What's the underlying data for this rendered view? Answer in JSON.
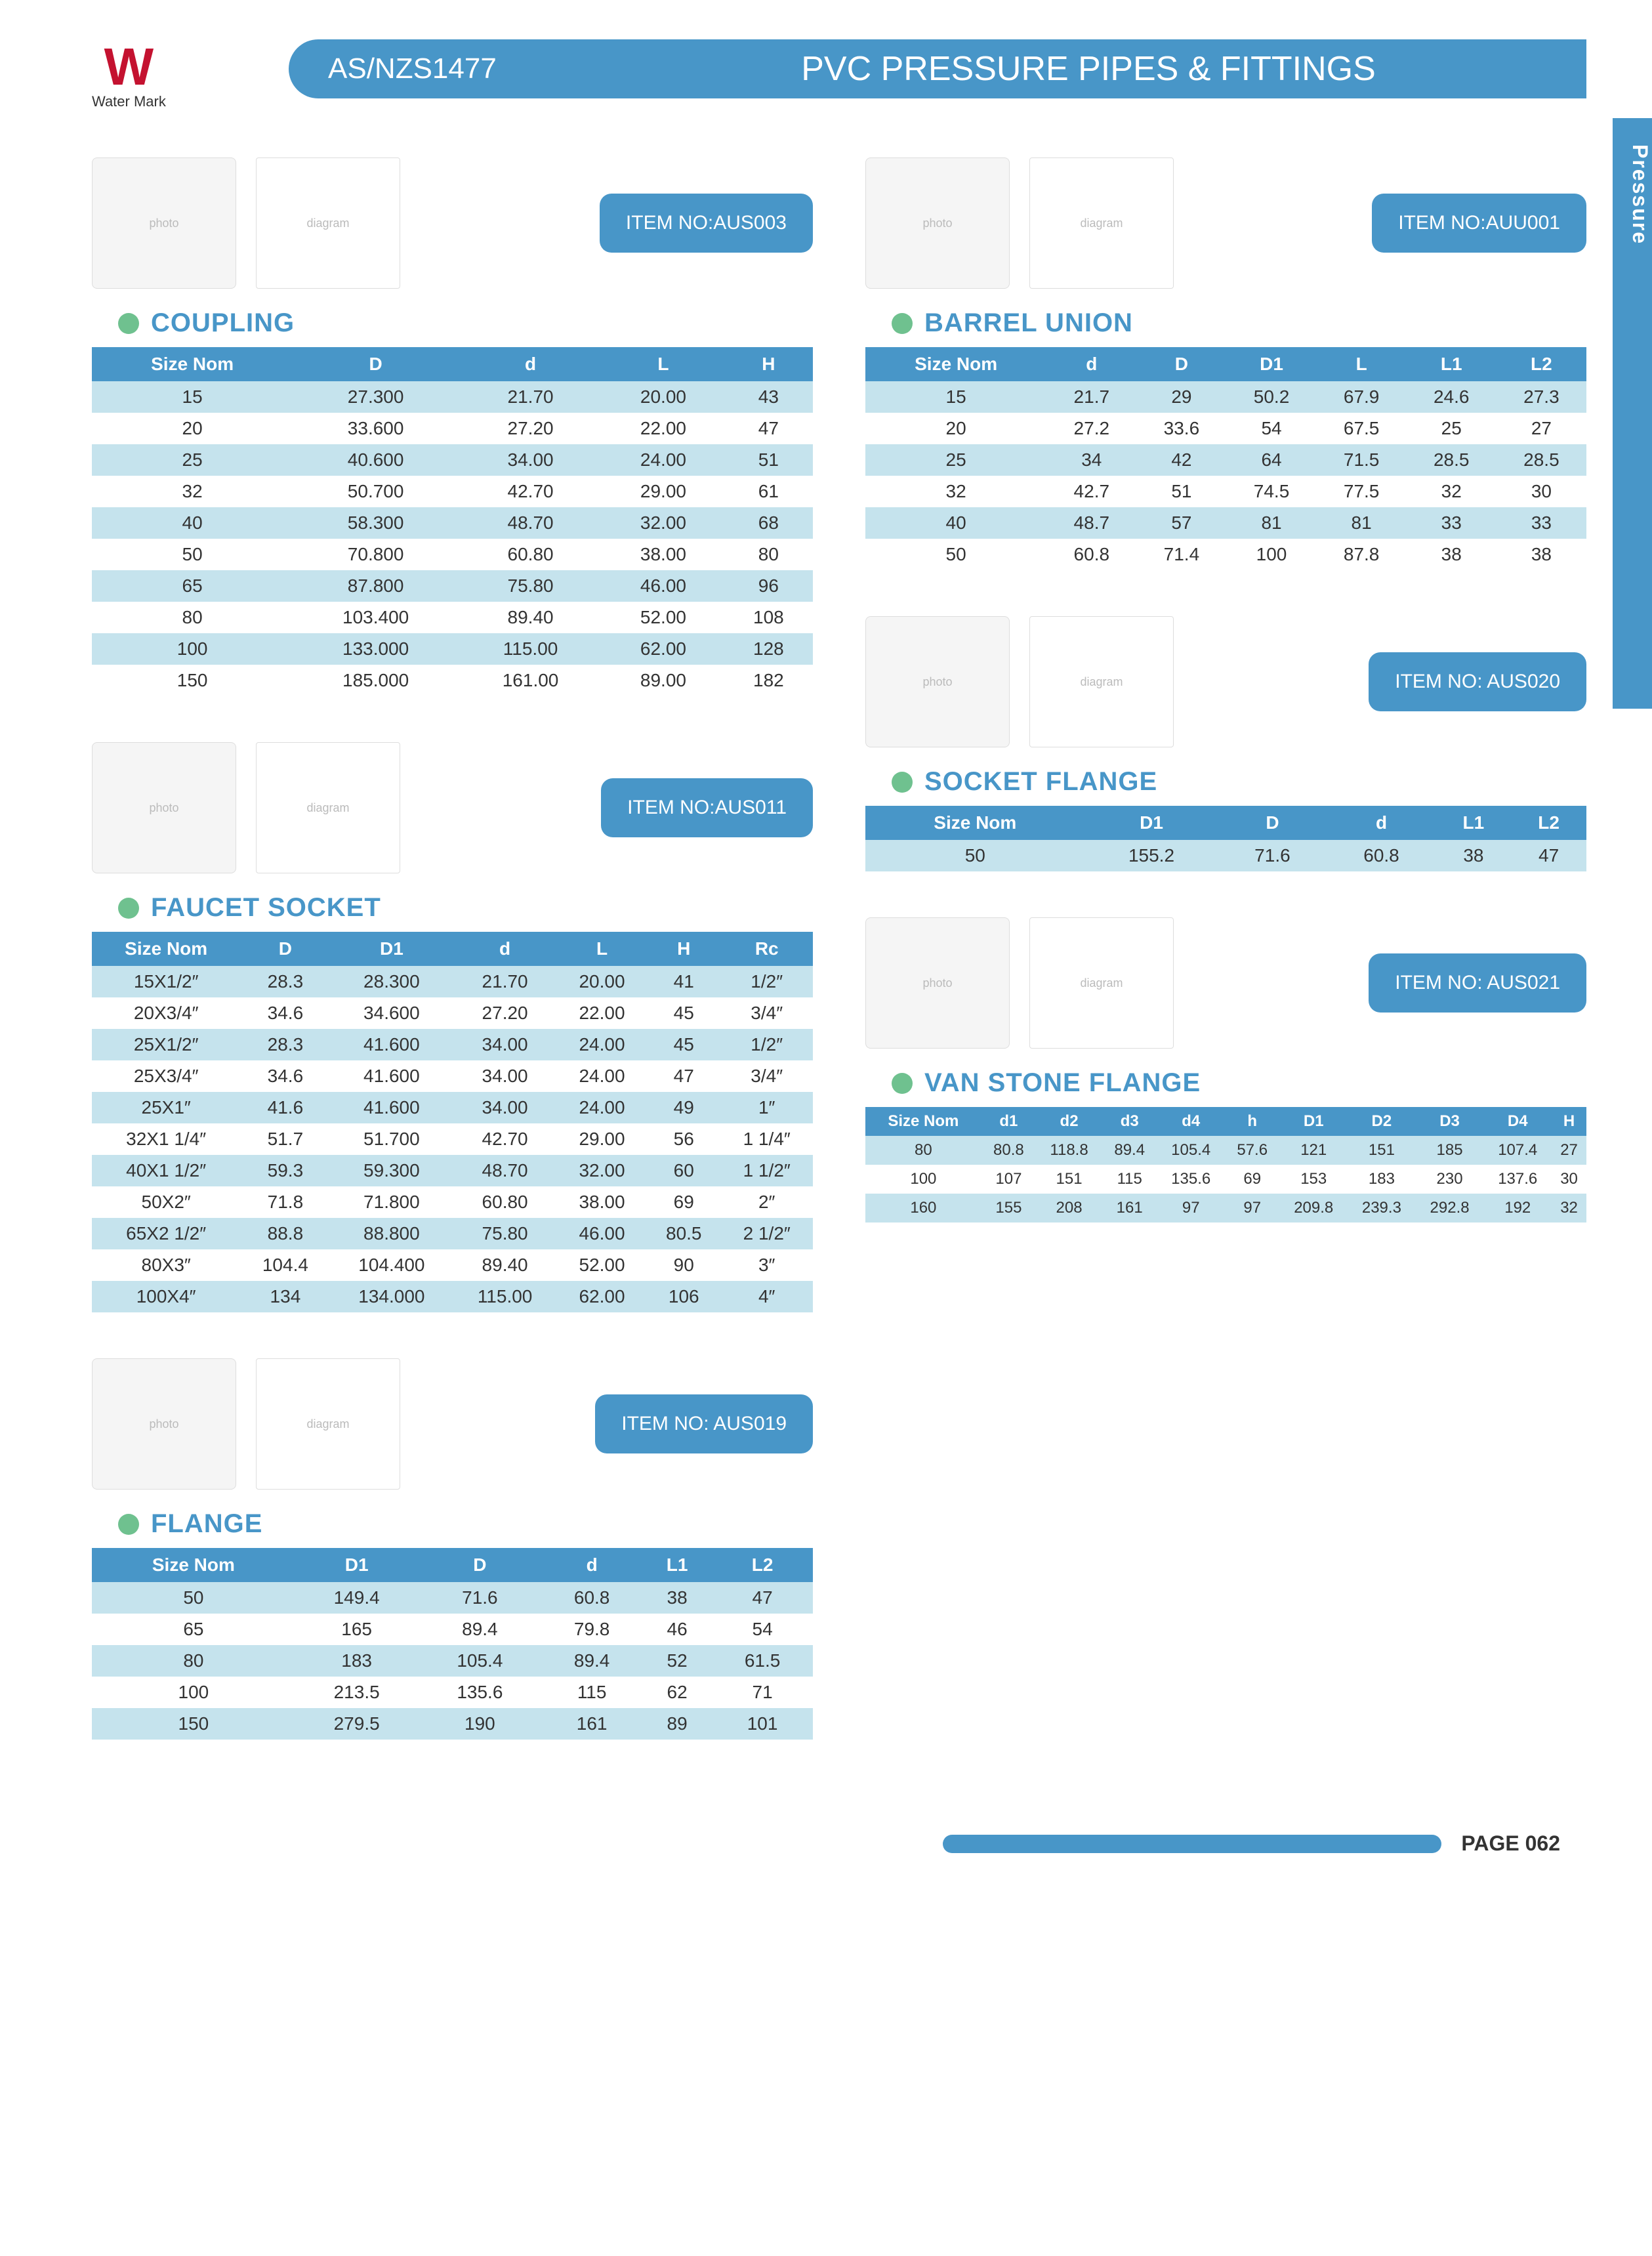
{
  "watermark": {
    "icon": "W",
    "label": "Water Mark"
  },
  "header": {
    "standard": "AS/NZS1477",
    "title": "PVC PRESSURE PIPES & FITTINGS"
  },
  "side_tab": "Pressure",
  "footer": {
    "page": "PAGE 062"
  },
  "colors": {
    "primary": "#4896c8",
    "dot": "#6fc18f",
    "row_alt": "#c5e3ed",
    "wm_red": "#c41230"
  },
  "coupling": {
    "item_no": "ITEM NO:AUS003",
    "title": "COUPLING",
    "columns": [
      "Size Nom",
      "D",
      "d",
      "L",
      "H"
    ],
    "rows": [
      [
        "15",
        "27.300",
        "21.70",
        "20.00",
        "43"
      ],
      [
        "20",
        "33.600",
        "27.20",
        "22.00",
        "47"
      ],
      [
        "25",
        "40.600",
        "34.00",
        "24.00",
        "51"
      ],
      [
        "32",
        "50.700",
        "42.70",
        "29.00",
        "61"
      ],
      [
        "40",
        "58.300",
        "48.70",
        "32.00",
        "68"
      ],
      [
        "50",
        "70.800",
        "60.80",
        "38.00",
        "80"
      ],
      [
        "65",
        "87.800",
        "75.80",
        "46.00",
        "96"
      ],
      [
        "80",
        "103.400",
        "89.40",
        "52.00",
        "108"
      ],
      [
        "100",
        "133.000",
        "115.00",
        "62.00",
        "128"
      ],
      [
        "150",
        "185.000",
        "161.00",
        "89.00",
        "182"
      ]
    ]
  },
  "barrel_union": {
    "item_no": "ITEM NO:AUU001",
    "title": "BARREL UNION",
    "columns": [
      "Size Nom",
      "d",
      "D",
      "D1",
      "L",
      "L1",
      "L2"
    ],
    "rows": [
      [
        "15",
        "21.7",
        "29",
        "50.2",
        "67.9",
        "24.6",
        "27.3"
      ],
      [
        "20",
        "27.2",
        "33.6",
        "54",
        "67.5",
        "25",
        "27"
      ],
      [
        "25",
        "34",
        "42",
        "64",
        "71.5",
        "28.5",
        "28.5"
      ],
      [
        "32",
        "42.7",
        "51",
        "74.5",
        "77.5",
        "32",
        "30"
      ],
      [
        "40",
        "48.7",
        "57",
        "81",
        "81",
        "33",
        "33"
      ],
      [
        "50",
        "60.8",
        "71.4",
        "100",
        "87.8",
        "38",
        "38"
      ]
    ]
  },
  "faucet_socket": {
    "item_no": "ITEM NO:AUS011",
    "title": "FAUCET SOCKET",
    "columns": [
      "Size Nom",
      "D",
      "D1",
      "d",
      "L",
      "H",
      "Rc"
    ],
    "rows": [
      [
        "15X1/2″",
        "28.3",
        "28.300",
        "21.70",
        "20.00",
        "41",
        "1/2″"
      ],
      [
        "20X3/4″",
        "34.6",
        "34.600",
        "27.20",
        "22.00",
        "45",
        "3/4″"
      ],
      [
        "25X1/2″",
        "28.3",
        "41.600",
        "34.00",
        "24.00",
        "45",
        "1/2″"
      ],
      [
        "25X3/4″",
        "34.6",
        "41.600",
        "34.00",
        "24.00",
        "47",
        "3/4″"
      ],
      [
        "25X1″",
        "41.6",
        "41.600",
        "34.00",
        "24.00",
        "49",
        "1″"
      ],
      [
        "32X1 1/4″",
        "51.7",
        "51.700",
        "42.70",
        "29.00",
        "56",
        "1 1/4″"
      ],
      [
        "40X1 1/2″",
        "59.3",
        "59.300",
        "48.70",
        "32.00",
        "60",
        "1 1/2″"
      ],
      [
        "50X2″",
        "71.8",
        "71.800",
        "60.80",
        "38.00",
        "69",
        "2″"
      ],
      [
        "65X2 1/2″",
        "88.8",
        "88.800",
        "75.80",
        "46.00",
        "80.5",
        "2 1/2″"
      ],
      [
        "80X3″",
        "104.4",
        "104.400",
        "89.40",
        "52.00",
        "90",
        "3″"
      ],
      [
        "100X4″",
        "134",
        "134.000",
        "115.00",
        "62.00",
        "106",
        "4″"
      ]
    ]
  },
  "socket_flange": {
    "item_no": "ITEM NO: AUS020",
    "title": "SOCKET FLANGE",
    "columns": [
      "Size Nom",
      "D1",
      "D",
      "d",
      "L1",
      "L2"
    ],
    "rows": [
      [
        "50",
        "155.2",
        "71.6",
        "60.8",
        "38",
        "47"
      ]
    ]
  },
  "van_stone_flange": {
    "item_no": "ITEM NO: AUS021",
    "title": "VAN STONE FLANGE",
    "columns": [
      "Size Nom",
      "d1",
      "d2",
      "d3",
      "d4",
      "h",
      "D1",
      "D2",
      "D3",
      "D4",
      "H"
    ],
    "rows": [
      [
        "80",
        "80.8",
        "118.8",
        "89.4",
        "105.4",
        "57.6",
        "121",
        "151",
        "185",
        "107.4",
        "27"
      ],
      [
        "100",
        "107",
        "151",
        "115",
        "135.6",
        "69",
        "153",
        "183",
        "230",
        "137.6",
        "30"
      ],
      [
        "160",
        "155",
        "208",
        "161",
        "97",
        "97",
        "209.8",
        "239.3",
        "292.8",
        "192",
        "32"
      ]
    ]
  },
  "flange": {
    "item_no": "ITEM NO: AUS019",
    "title": "FLANGE",
    "columns": [
      "Size Nom",
      "D1",
      "D",
      "d",
      "L1",
      "L2"
    ],
    "rows": [
      [
        "50",
        "149.4",
        "71.6",
        "60.8",
        "38",
        "47"
      ],
      [
        "65",
        "165",
        "89.4",
        "79.8",
        "46",
        "54"
      ],
      [
        "80",
        "183",
        "105.4",
        "89.4",
        "52",
        "61.5"
      ],
      [
        "100",
        "213.5",
        "135.6",
        "115",
        "62",
        "71"
      ],
      [
        "150",
        "279.5",
        "190",
        "161",
        "89",
        "101"
      ]
    ]
  }
}
